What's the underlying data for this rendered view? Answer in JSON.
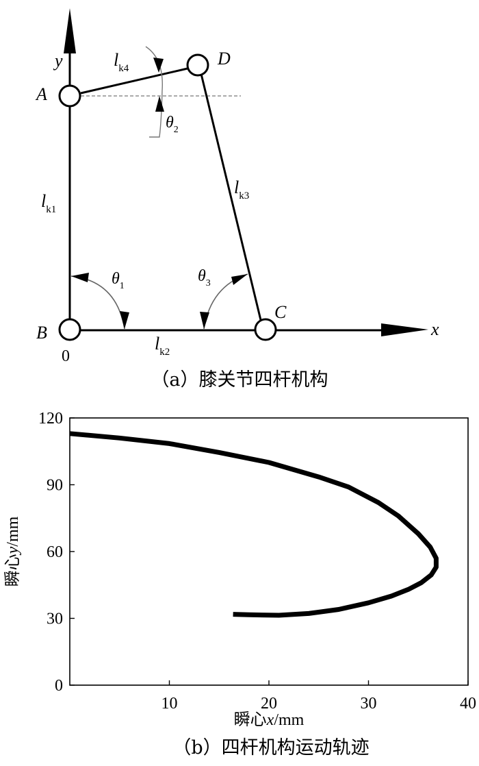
{
  "panel_a": {
    "caption": "（a）膝关节四杆机构",
    "points": {
      "A": "A",
      "B": "B",
      "C": "C",
      "D": "D"
    },
    "origin": "0",
    "axes": {
      "x": "x",
      "y": "y"
    },
    "links": {
      "k1": {
        "sym": "l",
        "sub": "k1"
      },
      "k2": {
        "sym": "l",
        "sub": "k2"
      },
      "k3": {
        "sym": "l",
        "sub": "k3"
      },
      "k4": {
        "sym": "l",
        "sub": "k4"
      }
    },
    "angles": {
      "t1": {
        "sym": "θ",
        "sub": "1"
      },
      "t2": {
        "sym": "θ",
        "sub": "2"
      },
      "t3": {
        "sym": "θ",
        "sub": "3"
      }
    }
  },
  "panel_b": {
    "caption": "（b）四杆机构运动轨迹",
    "chart_data": {
      "type": "line",
      "xlabel": {
        "prefix": "瞬心",
        "var": "x",
        "unit": "/mm"
      },
      "ylabel": {
        "prefix": "瞬心",
        "var": "y",
        "unit": "/mm"
      },
      "xlim": [
        0,
        40
      ],
      "ylim": [
        0,
        120
      ],
      "xticks": [
        10,
        20,
        30,
        40
      ],
      "yticks": [
        0,
        30,
        60,
        90,
        120
      ],
      "grid": false,
      "series": [
        {
          "color": "#000000",
          "points": [
            [
              0,
              113
            ],
            [
              5,
              111
            ],
            [
              10,
              108.5
            ],
            [
              15,
              104.5
            ],
            [
              20,
              100
            ],
            [
              25,
              93.5
            ],
            [
              28,
              89
            ],
            [
              31,
              82
            ],
            [
              33,
              76
            ],
            [
              35,
              68
            ],
            [
              36.2,
              62
            ],
            [
              36.8,
              57
            ],
            [
              36.8,
              53
            ],
            [
              36.3,
              49.5
            ],
            [
              35.3,
              46
            ],
            [
              34,
              43
            ],
            [
              32.3,
              40
            ],
            [
              30,
              37
            ],
            [
              27,
              34
            ],
            [
              24,
              32.2
            ],
            [
              21,
              31.4
            ],
            [
              18,
              31.6
            ],
            [
              16.4,
              31.8
            ]
          ]
        }
      ]
    }
  }
}
